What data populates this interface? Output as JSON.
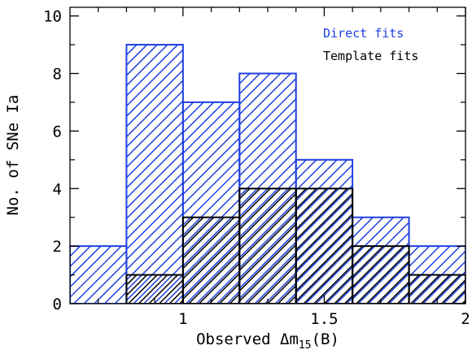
{
  "chart_data": {
    "type": "bar",
    "subtype": "overlaid-histogram",
    "title": "",
    "xlabel_prefix": "Observed Δm",
    "xlabel_subscript": "15",
    "xlabel_suffix": "(B)",
    "ylabel": "No. of SNe Ia",
    "xlim": [
      0.6,
      2.0
    ],
    "ylim": [
      0,
      10.3
    ],
    "x_ticks": [
      1,
      1.5,
      2
    ],
    "x_tick_labels": [
      "1",
      "1.5",
      "2"
    ],
    "y_ticks": [
      0,
      2,
      4,
      6,
      8,
      10
    ],
    "y_tick_labels": [
      "0",
      "2",
      "4",
      "6",
      "8",
      "10"
    ],
    "bin_edges": [
      0.6,
      0.8,
      1.0,
      1.2,
      1.4,
      1.6,
      1.8,
      2.0
    ],
    "series": [
      {
        "name": "Direct fits",
        "color": "#1f3fe0",
        "values": [
          2,
          9,
          7,
          8,
          5,
          3,
          2
        ]
      },
      {
        "name": "Template fits",
        "color": "#000000",
        "values": [
          0,
          1,
          3,
          4,
          4,
          2,
          1
        ]
      }
    ],
    "legend_position": "top-right",
    "grid": false
  }
}
